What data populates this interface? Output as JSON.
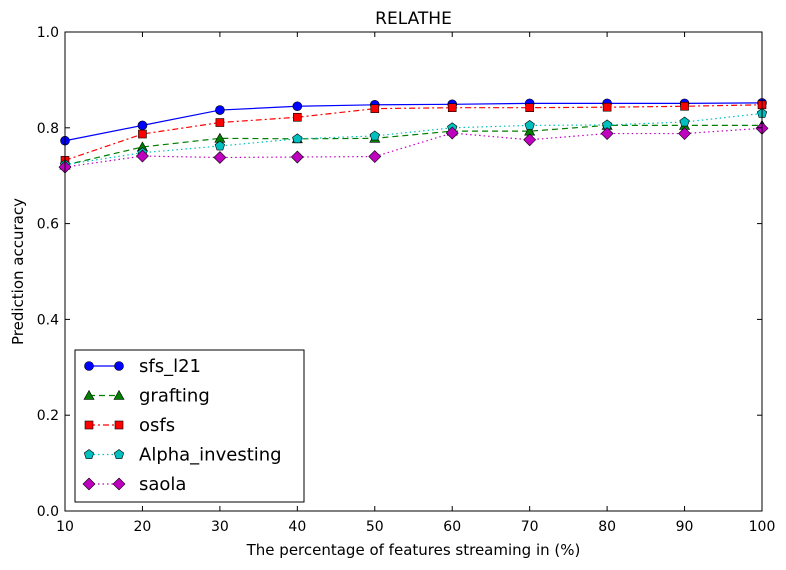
{
  "chart_data": {
    "type": "line",
    "title": "RELATHE",
    "xlabel": "The percentage of features streaming in (%)",
    "ylabel": "Prediction accuracy",
    "x": [
      10,
      20,
      30,
      40,
      50,
      60,
      70,
      80,
      90,
      100
    ],
    "xlim": [
      10,
      100
    ],
    "ylim": [
      0.0,
      1.0
    ],
    "xticks": [
      "10",
      "20",
      "30",
      "40",
      "50",
      "60",
      "70",
      "80",
      "90",
      "100"
    ],
    "yticks": [
      "0.0",
      "0.2",
      "0.4",
      "0.6",
      "0.8",
      "1.0"
    ],
    "grid": false,
    "legend_position": "lower-left",
    "series": [
      {
        "name": "sfs_l21",
        "color": "#0000ff",
        "marker": "circle",
        "dash": "solid",
        "values": [
          0.773,
          0.805,
          0.837,
          0.845,
          0.848,
          0.849,
          0.851,
          0.851,
          0.851,
          0.852
        ]
      },
      {
        "name": "grafting",
        "color": "#007f00",
        "marker": "triangle",
        "dash": "dashed",
        "values": [
          0.722,
          0.76,
          0.778,
          0.777,
          0.778,
          0.793,
          0.793,
          0.805,
          0.805,
          0.805
        ]
      },
      {
        "name": "osfs",
        "color": "#ff0000",
        "marker": "square",
        "dash": "dashdot",
        "values": [
          0.732,
          0.787,
          0.811,
          0.822,
          0.84,
          0.842,
          0.842,
          0.843,
          0.845,
          0.848
        ]
      },
      {
        "name": "Alpha_investing",
        "color": "#00bfbf",
        "marker": "pentagon",
        "dash": "dotted",
        "values": [
          0.723,
          0.748,
          0.762,
          0.777,
          0.783,
          0.8,
          0.805,
          0.806,
          0.812,
          0.83
        ]
      },
      {
        "name": "saola",
        "color": "#bf00bf",
        "marker": "diamond",
        "dash": "dotted",
        "values": [
          0.718,
          0.741,
          0.738,
          0.739,
          0.74,
          0.789,
          0.775,
          0.788,
          0.788,
          0.799
        ]
      }
    ]
  }
}
